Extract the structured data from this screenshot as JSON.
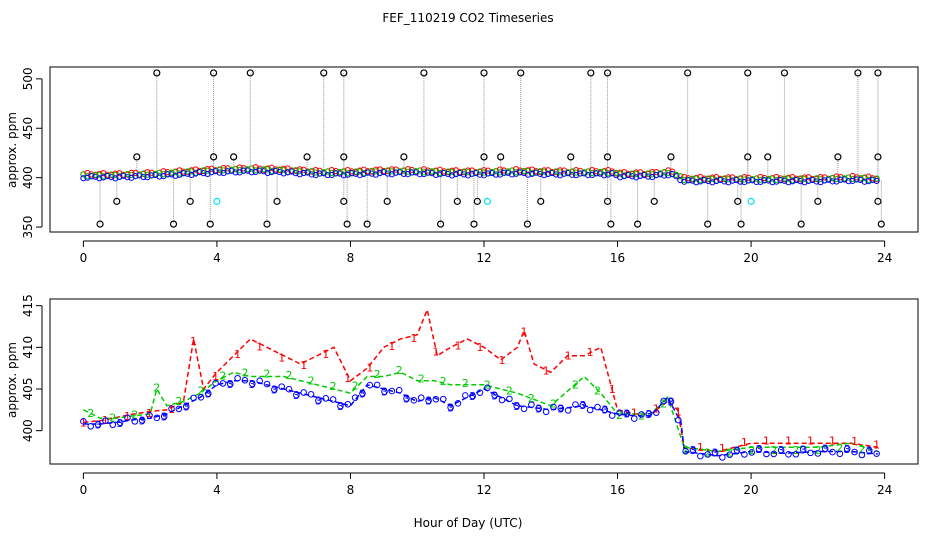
{
  "title": "FEF_110219  CO2 Timeseries",
  "xlabel": "Hour of Day (UTC)",
  "chart_data": [
    {
      "type": "scatter",
      "panel": "top",
      "ylabel": "approx. ppm",
      "xlim": [
        -1,
        25
      ],
      "ylim": [
        345,
        512
      ],
      "xticks": [
        0,
        4,
        8,
        12,
        16,
        20,
        24
      ],
      "yticks": [
        350,
        400,
        450,
        500
      ],
      "colors": {
        "black": "#000000",
        "red": "#ff0000",
        "green": "#00cc00",
        "blue": "#0000ff",
        "cyan": "#00e5ee",
        "stem": "#999999"
      },
      "series_baseline": [
        {
          "x": 0,
          "y": 401
        },
        {
          "x": 1,
          "y": 401
        },
        {
          "x": 2,
          "y": 402
        },
        {
          "x": 3,
          "y": 404
        },
        {
          "x": 4,
          "y": 406
        },
        {
          "x": 5,
          "y": 407
        },
        {
          "x": 6,
          "y": 406
        },
        {
          "x": 7,
          "y": 404
        },
        {
          "x": 8,
          "y": 404
        },
        {
          "x": 9,
          "y": 405
        },
        {
          "x": 10,
          "y": 405
        },
        {
          "x": 11,
          "y": 404
        },
        {
          "x": 12,
          "y": 404
        },
        {
          "x": 13,
          "y": 405
        },
        {
          "x": 14,
          "y": 404
        },
        {
          "x": 15,
          "y": 404
        },
        {
          "x": 15.9,
          "y": 404
        },
        {
          "x": 16,
          "y": 402
        },
        {
          "x": 17,
          "y": 402
        },
        {
          "x": 17.6,
          "y": 404
        },
        {
          "x": 18,
          "y": 397
        },
        {
          "x": 19,
          "y": 397
        },
        {
          "x": 20,
          "y": 397
        },
        {
          "x": 21,
          "y": 397
        },
        {
          "x": 22,
          "y": 397
        },
        {
          "x": 23,
          "y": 398
        },
        {
          "x": 23.8,
          "y": 397
        }
      ],
      "spikes_high": [
        2.2,
        3.9,
        5.0,
        7.2,
        7.8,
        10.2,
        12.0,
        13.1,
        15.2,
        15.7,
        18.1,
        19.9,
        21.0,
        23.2,
        23.8
      ],
      "spikes_high_value": 506,
      "spikes_mid": [
        1.6,
        3.9,
        4.5,
        6.7,
        7.8,
        9.6,
        12.0,
        12.5,
        14.6,
        15.7,
        17.6,
        19.9,
        20.5,
        22.6,
        23.8
      ],
      "spikes_mid_value": 421,
      "spikes_low": [
        1.0,
        3.2,
        5.8,
        7.8,
        9.1,
        11.2,
        11.8,
        13.7,
        15.7,
        17.1,
        19.6,
        22.0,
        23.8
      ],
      "spikes_low_value": 376,
      "spikes_bottom": [
        0.5,
        2.7,
        3.8,
        5.5,
        7.9,
        8.5,
        10.7,
        11.7,
        13.3,
        15.8,
        16.6,
        18.7,
        19.7,
        21.5,
        23.9
      ],
      "spikes_bottom_value": 353,
      "cyan_points": [
        {
          "x": 4.0,
          "y": 376
        },
        {
          "x": 12.1,
          "y": 376
        },
        {
          "x": 20.0,
          "y": 376
        }
      ]
    },
    {
      "type": "line",
      "panel": "bottom",
      "ylabel": "approx. ppm",
      "xlim": [
        -1,
        25
      ],
      "ylim": [
        396,
        415.8
      ],
      "xticks": [
        0,
        4,
        8,
        12,
        16,
        20,
        24
      ],
      "yticks": [
        400,
        405,
        410,
        415
      ],
      "series": [
        {
          "name": "1",
          "color": "#ff0000",
          "points": [
            [
              0,
              401
            ],
            [
              0.5,
              401.2
            ],
            [
              1,
              401.6
            ],
            [
              1.5,
              402
            ],
            [
              2,
              402.3
            ],
            [
              2.5,
              402.5
            ],
            [
              3,
              403.5
            ],
            [
              3.3,
              411
            ],
            [
              3.6,
              405
            ],
            [
              4,
              407
            ],
            [
              4.5,
              409
            ],
            [
              5,
              411
            ],
            [
              5.5,
              410
            ],
            [
              6,
              409
            ],
            [
              6.5,
              408
            ],
            [
              7,
              409
            ],
            [
              7.5,
              410
            ],
            [
              8,
              406
            ],
            [
              8.5,
              407.5
            ],
            [
              9,
              410
            ],
            [
              9.5,
              411
            ],
            [
              10,
              411.5
            ],
            [
              10.3,
              414.5
            ],
            [
              10.6,
              409
            ],
            [
              11,
              410
            ],
            [
              11.5,
              411
            ],
            [
              12,
              410
            ],
            [
              12.5,
              408.5
            ],
            [
              13,
              410
            ],
            [
              13.2,
              412
            ],
            [
              13.5,
              408
            ],
            [
              14,
              407
            ],
            [
              14.5,
              409
            ],
            [
              15,
              409
            ],
            [
              15.5,
              410
            ],
            [
              16,
              402.5
            ],
            [
              16.5,
              402
            ],
            [
              17,
              402
            ],
            [
              17.5,
              403.5
            ],
            [
              17.8,
              402.5
            ],
            [
              18,
              398
            ],
            [
              19,
              397.5
            ],
            [
              20,
              398.5
            ],
            [
              21,
              398.5
            ],
            [
              22,
              398.5
            ],
            [
              23,
              398.5
            ],
            [
              23.8,
              398
            ]
          ]
        },
        {
          "name": "2",
          "color": "#00cc00",
          "points": [
            [
              0,
              402.5
            ],
            [
              0.5,
              401.5
            ],
            [
              1,
              401.5
            ],
            [
              1.5,
              401.8
            ],
            [
              2,
              402
            ],
            [
              2.2,
              405
            ],
            [
              2.5,
              403
            ],
            [
              3,
              403.5
            ],
            [
              3.5,
              404.5
            ],
            [
              4,
              406
            ],
            [
              4.5,
              407
            ],
            [
              5,
              406.5
            ],
            [
              6,
              406.5
            ],
            [
              7,
              405.5
            ],
            [
              8,
              404.5
            ],
            [
              8.5,
              406.5
            ],
            [
              9,
              406.5
            ],
            [
              9.5,
              407
            ],
            [
              10,
              406
            ],
            [
              10.5,
              406
            ],
            [
              11,
              405.5
            ],
            [
              11.5,
              405.5
            ],
            [
              12,
              405.5
            ],
            [
              12.5,
              405
            ],
            [
              13,
              404.5
            ],
            [
              14,
              403
            ],
            [
              15,
              406.5
            ],
            [
              15.5,
              404.5
            ],
            [
              16,
              402
            ],
            [
              16.5,
              402
            ],
            [
              17,
              402
            ],
            [
              17.5,
              404
            ],
            [
              18,
              398
            ],
            [
              19,
              397.5
            ],
            [
              20,
              398
            ],
            [
              21,
              398
            ],
            [
              22,
              398
            ],
            [
              23,
              398.5
            ],
            [
              23.8,
              397.5
            ]
          ]
        },
        {
          "name": "3",
          "color": "#0000ff",
          "points": [
            [
              0,
              400.8
            ],
            [
              0.5,
              400.8
            ],
            [
              1,
              401
            ],
            [
              1.5,
              401.3
            ],
            [
              2,
              401.5
            ],
            [
              2.5,
              402
            ],
            [
              3,
              403
            ],
            [
              3.5,
              404
            ],
            [
              4,
              405.5
            ],
            [
              4.5,
              406
            ],
            [
              5,
              406
            ],
            [
              6,
              405
            ],
            [
              7,
              404
            ],
            [
              8,
              403
            ],
            [
              8.5,
              405.5
            ],
            [
              9,
              405
            ],
            [
              9.5,
              404.5
            ],
            [
              10,
              403.5
            ],
            [
              10.5,
              404
            ],
            [
              11,
              403
            ],
            [
              11.5,
              404
            ],
            [
              12,
              405
            ],
            [
              12.5,
              404
            ],
            [
              13,
              403
            ],
            [
              14,
              402.5
            ],
            [
              15,
              403
            ],
            [
              15.5,
              402.5
            ],
            [
              16,
              402
            ],
            [
              16.5,
              401.8
            ],
            [
              17,
              401.8
            ],
            [
              17.5,
              404
            ],
            [
              17.9,
              401
            ],
            [
              18,
              397.5
            ],
            [
              19,
              397
            ],
            [
              20,
              397.5
            ],
            [
              21,
              397.3
            ],
            [
              22,
              397.5
            ],
            [
              23,
              397.5
            ],
            [
              23.8,
              397.2
            ]
          ]
        }
      ]
    }
  ]
}
